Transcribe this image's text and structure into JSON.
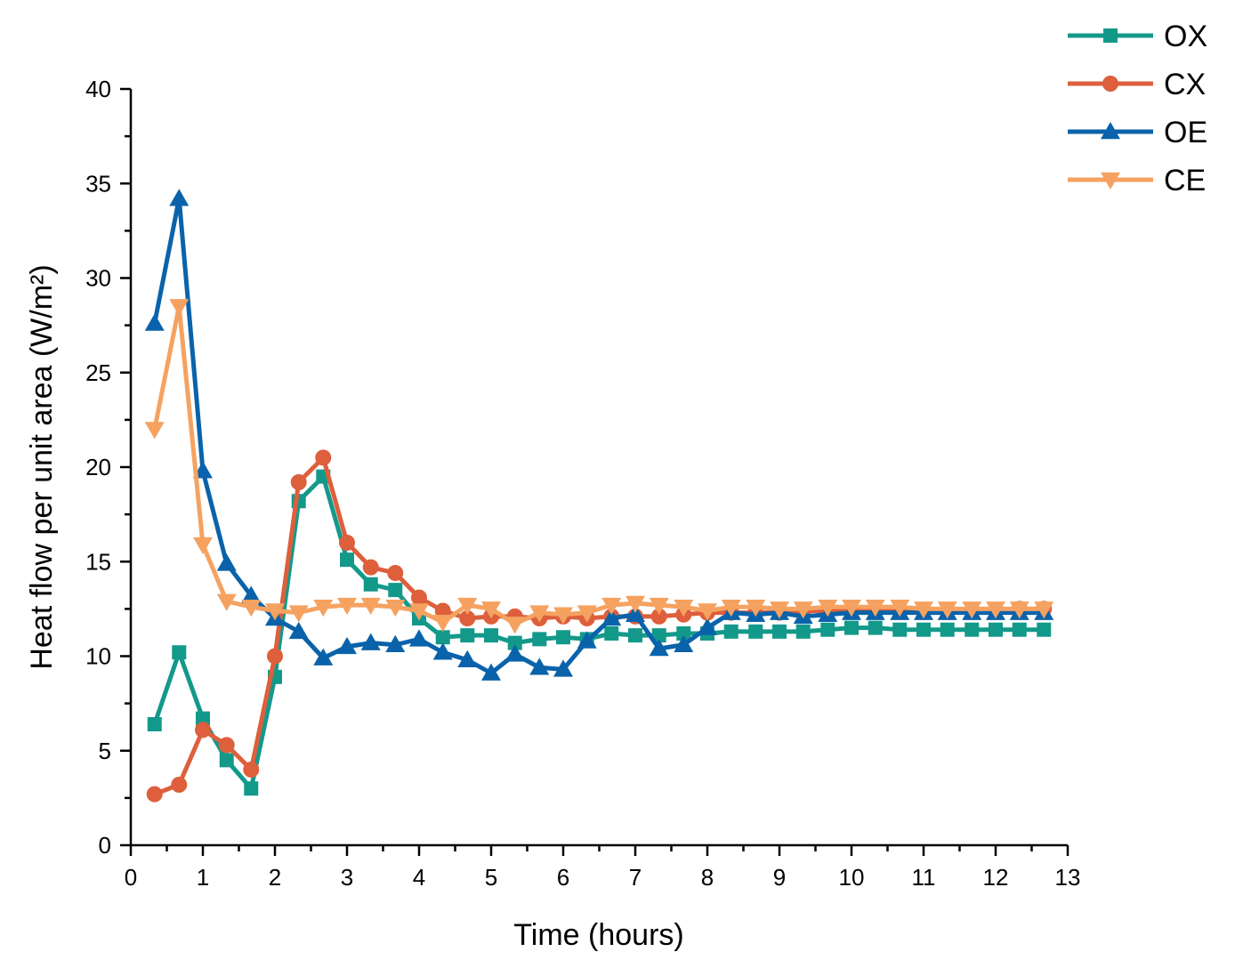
{
  "chart_data": {
    "type": "line",
    "title": "",
    "xlabel": "Time (hours)",
    "ylabel": "Heat flow per unit area (W/m²)",
    "xlim": [
      0,
      13
    ],
    "ylim": [
      0,
      40
    ],
    "x_ticks": [
      0,
      1,
      2,
      3,
      4,
      5,
      6,
      7,
      8,
      9,
      10,
      11,
      12,
      13
    ],
    "y_ticks": [
      0,
      5,
      10,
      15,
      20,
      25,
      30,
      35,
      40
    ],
    "grid": false,
    "legend_position": "top-right",
    "x": [
      0.33,
      0.67,
      1.0,
      1.33,
      1.67,
      2.0,
      2.33,
      2.67,
      3.0,
      3.33,
      3.67,
      4.0,
      4.33,
      4.67,
      5.0,
      5.33,
      5.67,
      6.0,
      6.33,
      6.67,
      7.0,
      7.33,
      7.67,
      8.0,
      8.33,
      8.67,
      9.0,
      9.33,
      9.67,
      10.0,
      10.33,
      10.67,
      11.0,
      11.33,
      11.67,
      12.0,
      12.33,
      12.67
    ],
    "series": [
      {
        "name": "OX",
        "color": "#13998a",
        "marker": "square",
        "values": [
          6.4,
          10.2,
          6.7,
          4.5,
          3.0,
          8.9,
          18.2,
          19.5,
          15.1,
          13.8,
          13.5,
          12.0,
          11.0,
          11.1,
          11.1,
          10.7,
          10.9,
          11.0,
          10.9,
          11.2,
          11.1,
          11.1,
          11.2,
          11.2,
          11.3,
          11.3,
          11.3,
          11.3,
          11.4,
          11.5,
          11.5,
          11.4,
          11.4,
          11.4,
          11.4,
          11.4,
          11.4,
          11.4
        ]
      },
      {
        "name": "CX",
        "color": "#dd5f3c",
        "marker": "circle",
        "values": [
          2.7,
          3.2,
          6.1,
          5.3,
          4.0,
          10.0,
          19.2,
          20.5,
          16.0,
          14.7,
          14.4,
          13.1,
          12.4,
          12.0,
          12.1,
          12.1,
          12.0,
          12.1,
          12.0,
          12.1,
          12.1,
          12.1,
          12.2,
          12.3,
          12.3,
          12.3,
          12.3,
          12.4,
          12.4,
          12.4,
          12.4,
          12.4,
          12.4,
          12.4,
          12.4,
          12.4,
          12.5,
          12.5
        ]
      },
      {
        "name": "OE",
        "color": "#0a63aa",
        "marker": "triangle-up",
        "values": [
          27.6,
          34.2,
          19.8,
          14.9,
          13.2,
          12.0,
          11.3,
          9.9,
          10.5,
          10.7,
          10.6,
          10.9,
          10.2,
          9.8,
          9.1,
          10.1,
          9.4,
          9.3,
          10.8,
          12.0,
          12.2,
          10.4,
          10.6,
          11.5,
          12.3,
          12.2,
          12.3,
          12.1,
          12.2,
          12.3,
          12.3,
          12.3,
          12.3,
          12.3,
          12.3,
          12.3,
          12.3,
          12.3
        ]
      },
      {
        "name": "CE",
        "color": "#f5a261",
        "marker": "triangle-down",
        "values": [
          22.0,
          28.5,
          15.9,
          12.9,
          12.6,
          12.4,
          12.3,
          12.6,
          12.7,
          12.7,
          12.6,
          12.4,
          11.8,
          12.7,
          12.5,
          11.7,
          12.3,
          12.2,
          12.3,
          12.7,
          12.8,
          12.7,
          12.6,
          12.4,
          12.6,
          12.6,
          12.5,
          12.5,
          12.6,
          12.6,
          12.6,
          12.6,
          12.5,
          12.5,
          12.5,
          12.5,
          12.5,
          12.5
        ]
      }
    ]
  }
}
